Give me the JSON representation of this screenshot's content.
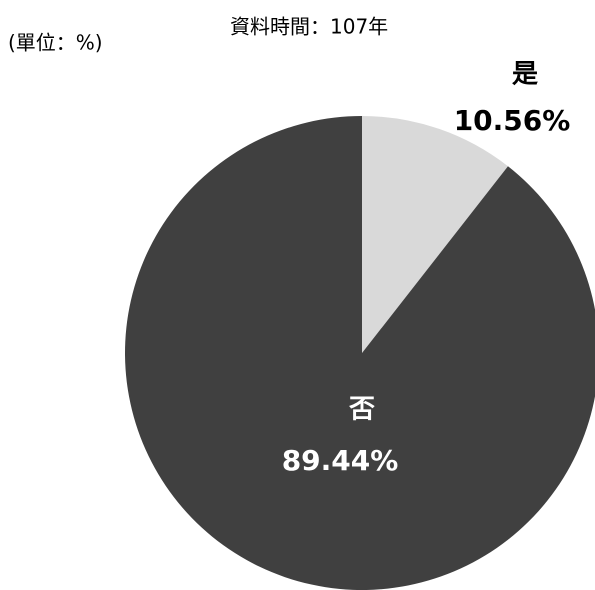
{
  "chart_data": {
    "type": "pie",
    "unit_label": "(單位：%)",
    "note": "資料時間：107年",
    "categories": [
      "是",
      "否"
    ],
    "values": [
      10.56,
      89.44
    ],
    "value_labels": [
      "10.56%",
      "89.44%"
    ],
    "colors": [
      "#d9d9d9",
      "#404040"
    ]
  }
}
